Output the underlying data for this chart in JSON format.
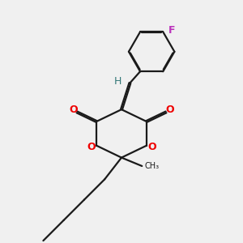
{
  "bg_color": "#f0f0f0",
  "bond_color": "#1a1a1a",
  "oxygen_color": "#ee0000",
  "fluorine_color": "#bb33bb",
  "hydrogen_color": "#337777",
  "lw": 1.6,
  "dbo": 0.018,
  "figsize": [
    3.0,
    3.0
  ],
  "dpi": 100,
  "xlim": [
    0.0,
    10.0
  ],
  "ylim": [
    0.0,
    10.0
  ]
}
